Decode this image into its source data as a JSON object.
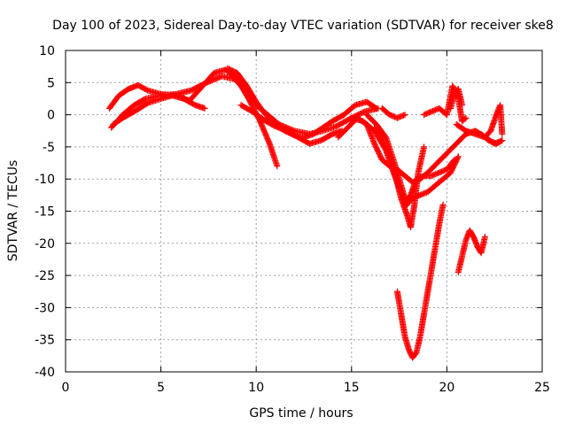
{
  "chart_data": {
    "type": "scatter",
    "title": "Day 100 of 2023, Sidereal Day-to-day VTEC variation (SDTVAR) for receiver ske8",
    "xlabel": "GPS time / hours",
    "ylabel": "SDTVAR / TECUs",
    "xlim": [
      0,
      25
    ],
    "ylim": [
      -40,
      10
    ],
    "xticks": [
      0,
      5,
      10,
      15,
      20,
      25
    ],
    "yticks": [
      -40,
      -35,
      -30,
      -25,
      -20,
      -15,
      -10,
      -5,
      0,
      5,
      10
    ],
    "grid": true,
    "legend": "none",
    "marker": "+",
    "color": "#ff0000",
    "series": [
      {
        "x": [
          2.3,
          2.8,
          3.3,
          3.8,
          4.3,
          5.0,
          5.8,
          6.5,
          7.2,
          7.8,
          8.4,
          9.0,
          9.6,
          10.2,
          10.7,
          11.1
        ],
        "y": [
          1.0,
          3.0,
          4.0,
          4.6,
          3.8,
          3.2,
          3.0,
          2.2,
          4.5,
          6.5,
          7.0,
          5.5,
          2.5,
          -1.0,
          -4.5,
          -8.0
        ]
      },
      {
        "x": [
          2.4,
          3.0,
          3.6,
          4.2,
          5.0,
          5.8,
          6.6,
          7.4,
          8.2,
          8.9,
          9.5,
          10.0,
          10.6,
          11.2,
          12.0,
          12.8,
          13.5,
          14.2,
          15.0,
          15.7,
          16.4
        ],
        "y": [
          -2.0,
          0.0,
          1.5,
          2.5,
          3.0,
          3.2,
          3.8,
          5.0,
          6.0,
          5.5,
          3.5,
          1.5,
          0.0,
          -1.5,
          -2.5,
          -3.0,
          -2.5,
          -1.8,
          -0.5,
          0.5,
          1.0
        ]
      },
      {
        "x": [
          2.5,
          3.0,
          3.6,
          4.3,
          5.0,
          5.6,
          6.2,
          6.8,
          7.3
        ],
        "y": [
          -1.5,
          -0.5,
          0.5,
          1.8,
          2.5,
          3.0,
          2.5,
          1.5,
          1.0
        ]
      },
      {
        "x": [
          8.5,
          9.0,
          9.5,
          10.0,
          10.5,
          11.0,
          11.5,
          12.0,
          12.5,
          13.0,
          13.5,
          14.0,
          14.6,
          15.2,
          15.8,
          16.3
        ],
        "y": [
          7.2,
          6.5,
          4.5,
          2.0,
          0.0,
          -1.5,
          -2.5,
          -3.2,
          -3.5,
          -3.0,
          -2.0,
          -1.0,
          0.0,
          1.5,
          2.0,
          1.0
        ]
      },
      {
        "x": [
          9.2,
          9.8,
          10.4,
          11.0,
          11.6,
          12.2,
          12.8,
          13.4,
          14.0,
          14.5
        ],
        "y": [
          1.5,
          0.5,
          -0.8,
          -1.8,
          -2.5,
          -3.5,
          -4.5,
          -4.0,
          -3.0,
          -2.5
        ]
      },
      {
        "x": [
          14.3,
          14.8,
          15.3,
          15.8,
          16.2,
          16.6,
          17.0,
          17.4,
          17.8,
          18.2,
          18.6,
          19.0,
          19.5,
          20.0,
          20.5,
          21.0,
          21.5,
          22.0,
          22.5,
          22.9
        ],
        "y": [
          -3.5,
          -2.0,
          -0.5,
          -1.5,
          -4.5,
          -7.0,
          -8.0,
          -8.5,
          -9.5,
          -10.5,
          -10.0,
          -9.0,
          -7.5,
          -6.0,
          -4.5,
          -3.0,
          -2.5,
          -3.5,
          -4.5,
          -4.0
        ]
      },
      {
        "x": [
          15.0,
          15.6,
          16.2,
          16.8,
          17.2,
          17.6,
          17.9,
          18.1,
          18.4,
          18.8,
          19.2,
          19.6,
          20.0,
          20.4
        ],
        "y": [
          -0.5,
          -1.0,
          -2.5,
          -5.5,
          -9.0,
          -12.0,
          -13.5,
          -12.5,
          -10.0,
          -9.5,
          -9.5,
          -9.0,
          -8.5,
          -7.0
        ]
      },
      {
        "x": [
          15.8,
          16.3,
          16.8,
          17.2,
          17.6,
          17.9,
          18.2,
          18.6,
          19.0,
          19.4,
          19.8,
          20.2,
          20.6
        ],
        "y": [
          0.0,
          -1.5,
          -3.5,
          -7.0,
          -11.0,
          -14.0,
          -13.0,
          -12.5,
          -12.0,
          -11.0,
          -10.0,
          -9.0,
          -6.5
        ]
      },
      {
        "x": [
          16.2,
          16.6,
          17.0,
          17.3,
          17.6,
          17.9,
          18.1,
          18.3,
          18.5,
          18.8
        ],
        "y": [
          -2.0,
          -4.0,
          -6.5,
          -9.5,
          -13.0,
          -15.5,
          -17.5,
          -14.0,
          -9.0,
          -5.0
        ]
      },
      {
        "x": [
          16.6,
          17.0,
          17.4,
          17.8
        ],
        "y": [
          1.0,
          0.0,
          -0.5,
          0.0
        ]
      },
      {
        "x": [
          17.4,
          17.6,
          17.8,
          18.0,
          18.2,
          18.4,
          18.6,
          18.8,
          19.0,
          19.2,
          19.4,
          19.6,
          19.8
        ],
        "y": [
          -27.5,
          -31.0,
          -34.5,
          -36.5,
          -37.8,
          -37.0,
          -34.5,
          -31.0,
          -27.5,
          -24.0,
          -20.5,
          -17.0,
          -14.0
        ]
      },
      {
        "x": [
          18.8,
          19.2,
          19.6,
          20.0,
          20.3,
          20.6,
          20.8,
          21.0
        ],
        "y": [
          0.0,
          0.5,
          1.0,
          0.0,
          4.5,
          2.5,
          -1.0,
          -0.5
        ]
      },
      {
        "x": [
          20.2,
          20.4,
          20.6,
          20.8
        ],
        "y": [
          1.0,
          3.5,
          4.0,
          1.5
        ]
      },
      {
        "x": [
          20.5,
          21.0,
          21.5,
          22.0,
          22.3,
          22.6,
          22.8,
          22.9
        ],
        "y": [
          -1.5,
          -2.5,
          -3.0,
          -3.5,
          -2.5,
          0.0,
          1.5,
          -3.0
        ]
      },
      {
        "x": [
          20.6,
          20.8,
          21.0,
          21.2,
          21.4,
          21.6,
          21.8,
          22.0
        ],
        "y": [
          -24.5,
          -22.0,
          -19.5,
          -18.0,
          -19.0,
          -20.5,
          -21.5,
          -19.0
        ]
      },
      {
        "x": [
          21.8,
          22.2,
          22.6,
          22.9
        ],
        "y": [
          -3.0,
          -4.0,
          -4.5,
          -4.0
        ]
      }
    ]
  }
}
